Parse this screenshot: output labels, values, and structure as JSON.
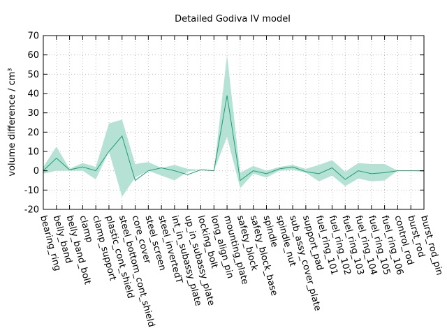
{
  "chart_data": {
    "type": "line",
    "title": "Detailed Godiva IV model",
    "xlabel": "",
    "ylabel": "volume difference / cm³",
    "ylim": [
      -20,
      70
    ],
    "yticks": [
      -20,
      -10,
      0,
      10,
      20,
      30,
      40,
      50,
      60,
      70
    ],
    "grid": true,
    "legend": "none",
    "line_color": "#1a9e73",
    "band_color": "#b5e2d4",
    "categories": [
      "bearing_ring",
      "belly_band",
      "belly_band_bolt",
      "clamp",
      "clamp_support",
      "plastic_cont_shield",
      "steel_bottom_cont_shield",
      "core_cover",
      "steel_screen",
      "steel_invertedT",
      "int_in_subassy_plate",
      "up_in_subassy_plate",
      "locking_bolt",
      "long_align_pin",
      "mounting_plate",
      "safety_block",
      "safety_block_base",
      "spindle",
      "spindle_nut",
      "sub_assy_cover_plate",
      "support_pad",
      "fuel_ring_101",
      "fuel_ring_102",
      "fuel_ring_103",
      "fuel_ring_104",
      "fuel_ring_105",
      "fuel_ring_106",
      "control_rod",
      "burst_rod",
      "burst_rod_pin"
    ],
    "values": [
      0,
      6.5,
      0.5,
      2,
      0,
      10,
      18,
      -5,
      0,
      1.5,
      0,
      -2,
      0.5,
      0,
      39,
      -5,
      0,
      -1.5,
      1,
      2,
      -0.5,
      -1.5,
      1.5,
      -4.5,
      0,
      -1.5,
      -1,
      0,
      0,
      0
    ],
    "upper": [
      2,
      12.5,
      1,
      4,
      2,
      24.5,
      26.5,
      3.5,
      4.5,
      1.5,
      3,
      1,
      0.5,
      0,
      60,
      -1,
      2.5,
      0,
      2,
      3,
      1,
      3,
      5.5,
      -0.5,
      4,
      3.5,
      3.5,
      0,
      0,
      0
    ],
    "lower": [
      -1.5,
      0,
      0,
      0,
      -4.5,
      10,
      -13.5,
      -3.5,
      0,
      -2.5,
      -5,
      -0.5,
      0.5,
      0,
      17.5,
      -9,
      -1.5,
      -3.5,
      0,
      0.5,
      -1,
      -5.5,
      -2.5,
      -8,
      -4,
      -5.5,
      -5,
      0,
      0,
      -0.5
    ]
  }
}
